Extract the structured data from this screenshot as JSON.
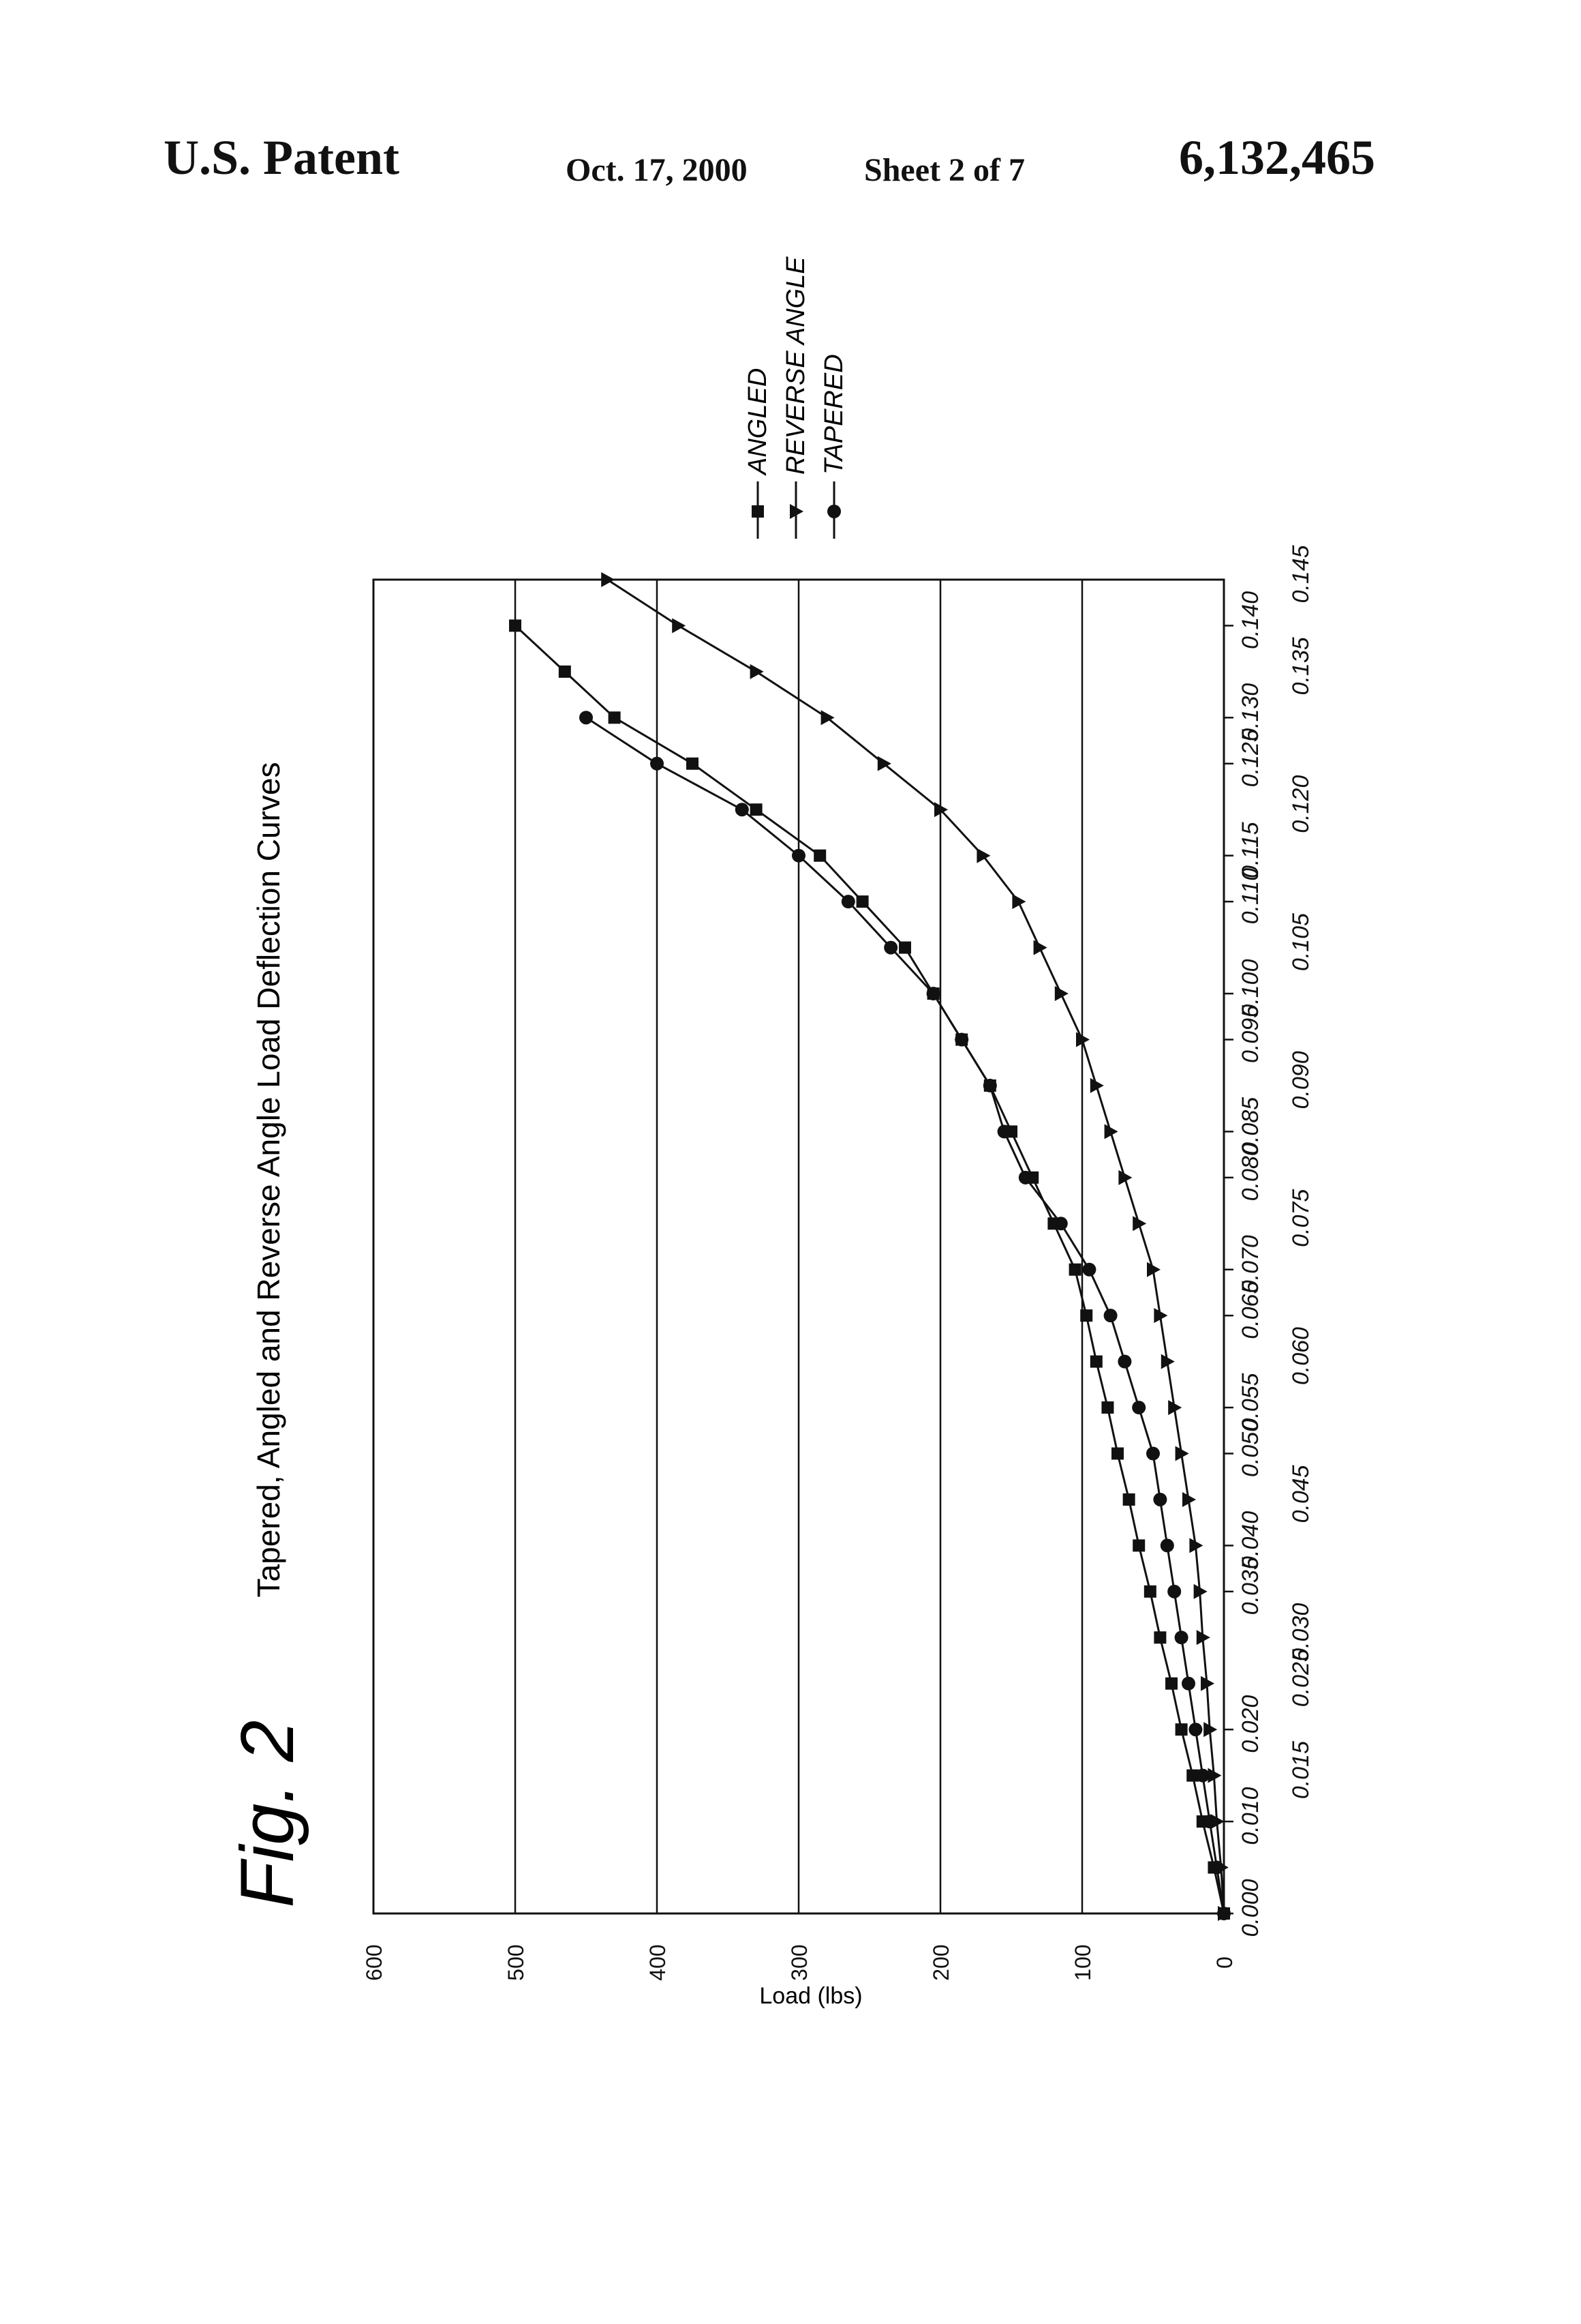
{
  "header": {
    "publisher": "U.S. Patent",
    "date": "Oct. 17, 2000",
    "sheet": "Sheet 2 of 7",
    "patent_number": "6,132,465"
  },
  "figure": {
    "label": "Fig. 2"
  },
  "chart_data": {
    "type": "line",
    "title": "Tapered, Angled and Reverse Angle Load Deflection Curves",
    "xlabel": "",
    "ylabel": "Load (lbs)",
    "xlim": [
      0.0,
      0.145
    ],
    "ylim": [
      0,
      600
    ],
    "y_ticks": [
      0,
      100,
      200,
      300,
      400,
      500,
      600
    ],
    "x_ticks_row1": [
      "0.000",
      "0.010",
      "0.020",
      "0.035",
      "0.040",
      "0.050",
      "0.055",
      "0.065",
      "0.070",
      "0.080",
      "0.085",
      "0.095",
      "0.100",
      "0.110",
      "0.115",
      "0.125",
      "0.130",
      "0.140"
    ],
    "x_ticks_row2": [
      "0.015",
      "0.025",
      "0.030",
      "0.045",
      "0.060",
      "0.075",
      "0.090",
      "0.105",
      "0.120",
      "0.135",
      "0.145"
    ],
    "grid": "horizontal",
    "orientation": "rotated 90 degrees counterclockwise on the page",
    "legend": "upper-right",
    "series": [
      {
        "name": "ANGLED",
        "marker": "square",
        "x": [
          0.0,
          0.005,
          0.01,
          0.015,
          0.02,
          0.025,
          0.03,
          0.035,
          0.04,
          0.045,
          0.05,
          0.055,
          0.06,
          0.065,
          0.07,
          0.075,
          0.08,
          0.085,
          0.09,
          0.095,
          0.1,
          0.105,
          0.11,
          0.115,
          0.12,
          0.125,
          0.13,
          0.135,
          0.14
        ],
        "y": [
          0,
          7,
          15,
          22,
          30,
          37,
          45,
          52,
          60,
          67,
          75,
          82,
          90,
          97,
          105,
          120,
          135,
          150,
          165,
          185,
          205,
          225,
          255,
          285,
          330,
          375,
          430,
          465,
          500
        ]
      },
      {
        "name": "REVERSE ANGLE",
        "marker": "triangle",
        "x": [
          0.0,
          0.005,
          0.01,
          0.015,
          0.02,
          0.025,
          0.03,
          0.035,
          0.04,
          0.045,
          0.05,
          0.055,
          0.06,
          0.065,
          0.07,
          0.075,
          0.08,
          0.085,
          0.09,
          0.095,
          0.1,
          0.105,
          0.11,
          0.115,
          0.12,
          0.125,
          0.13,
          0.135,
          0.14,
          0.145
        ],
        "y": [
          0,
          2,
          5,
          7,
          10,
          12,
          15,
          17,
          20,
          25,
          30,
          35,
          40,
          45,
          50,
          60,
          70,
          80,
          90,
          100,
          115,
          130,
          145,
          170,
          200,
          240,
          280,
          330,
          385,
          435
        ]
      },
      {
        "name": "TAPERED",
        "marker": "circle",
        "x": [
          0.0,
          0.005,
          0.01,
          0.015,
          0.02,
          0.025,
          0.03,
          0.035,
          0.04,
          0.045,
          0.05,
          0.055,
          0.06,
          0.065,
          0.07,
          0.075,
          0.08,
          0.085,
          0.09,
          0.095,
          0.1,
          0.105,
          0.11,
          0.115,
          0.12,
          0.125,
          0.13
        ],
        "y": [
          0,
          5,
          10,
          15,
          20,
          25,
          30,
          35,
          40,
          45,
          50,
          60,
          70,
          80,
          95,
          115,
          140,
          155,
          165,
          185,
          205,
          235,
          265,
          300,
          340,
          400,
          450
        ]
      }
    ]
  }
}
